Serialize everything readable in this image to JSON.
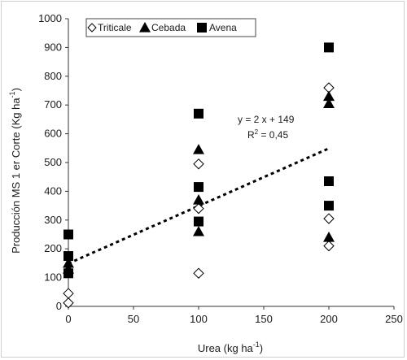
{
  "chart_data": {
    "type": "scatter",
    "xlabel": "Urea (kg ha",
    "xlabel_sup": "-1",
    "xlabel_close": ")",
    "ylabel": "Producción MS 1 er Corte (Kg ha",
    "ylabel_sup": "-1",
    "ylabel_close": ")",
    "xlim": [
      0,
      250
    ],
    "ylim": [
      0,
      1000
    ],
    "xticks": [
      0,
      50,
      100,
      150,
      200,
      250
    ],
    "yticks": [
      0,
      100,
      200,
      300,
      400,
      500,
      600,
      700,
      800,
      900,
      1000
    ],
    "grid": false,
    "legend_position": "top-center",
    "series": [
      {
        "name": "Triticale",
        "marker": "diamond-open",
        "color": "#000000",
        "x": [
          0,
          0,
          100,
          100,
          100,
          200,
          200,
          200
        ],
        "y": [
          12,
          45,
          115,
          340,
          495,
          210,
          305,
          760
        ]
      },
      {
        "name": "Cebada",
        "marker": "triangle",
        "color": "#000000",
        "x": [
          0,
          0,
          100,
          100,
          100,
          200,
          200,
          200
        ],
        "y": [
          130,
          150,
          260,
          370,
          545,
          240,
          705,
          730
        ]
      },
      {
        "name": "Avena",
        "marker": "square",
        "color": "#000000",
        "x": [
          0,
          0,
          0,
          100,
          100,
          100,
          200,
          200,
          200
        ],
        "y": [
          115,
          175,
          250,
          295,
          415,
          670,
          350,
          435,
          900
        ]
      }
    ],
    "trendline": {
      "slope": 2,
      "intercept": 149,
      "x_range": [
        0,
        200
      ],
      "style": "dashed",
      "color": "#000000"
    },
    "annotation": {
      "equation": "y = 2 x + 149",
      "r2_prefix": "R",
      "r2_sup": "2",
      "r2_value": " = 0,45"
    }
  }
}
